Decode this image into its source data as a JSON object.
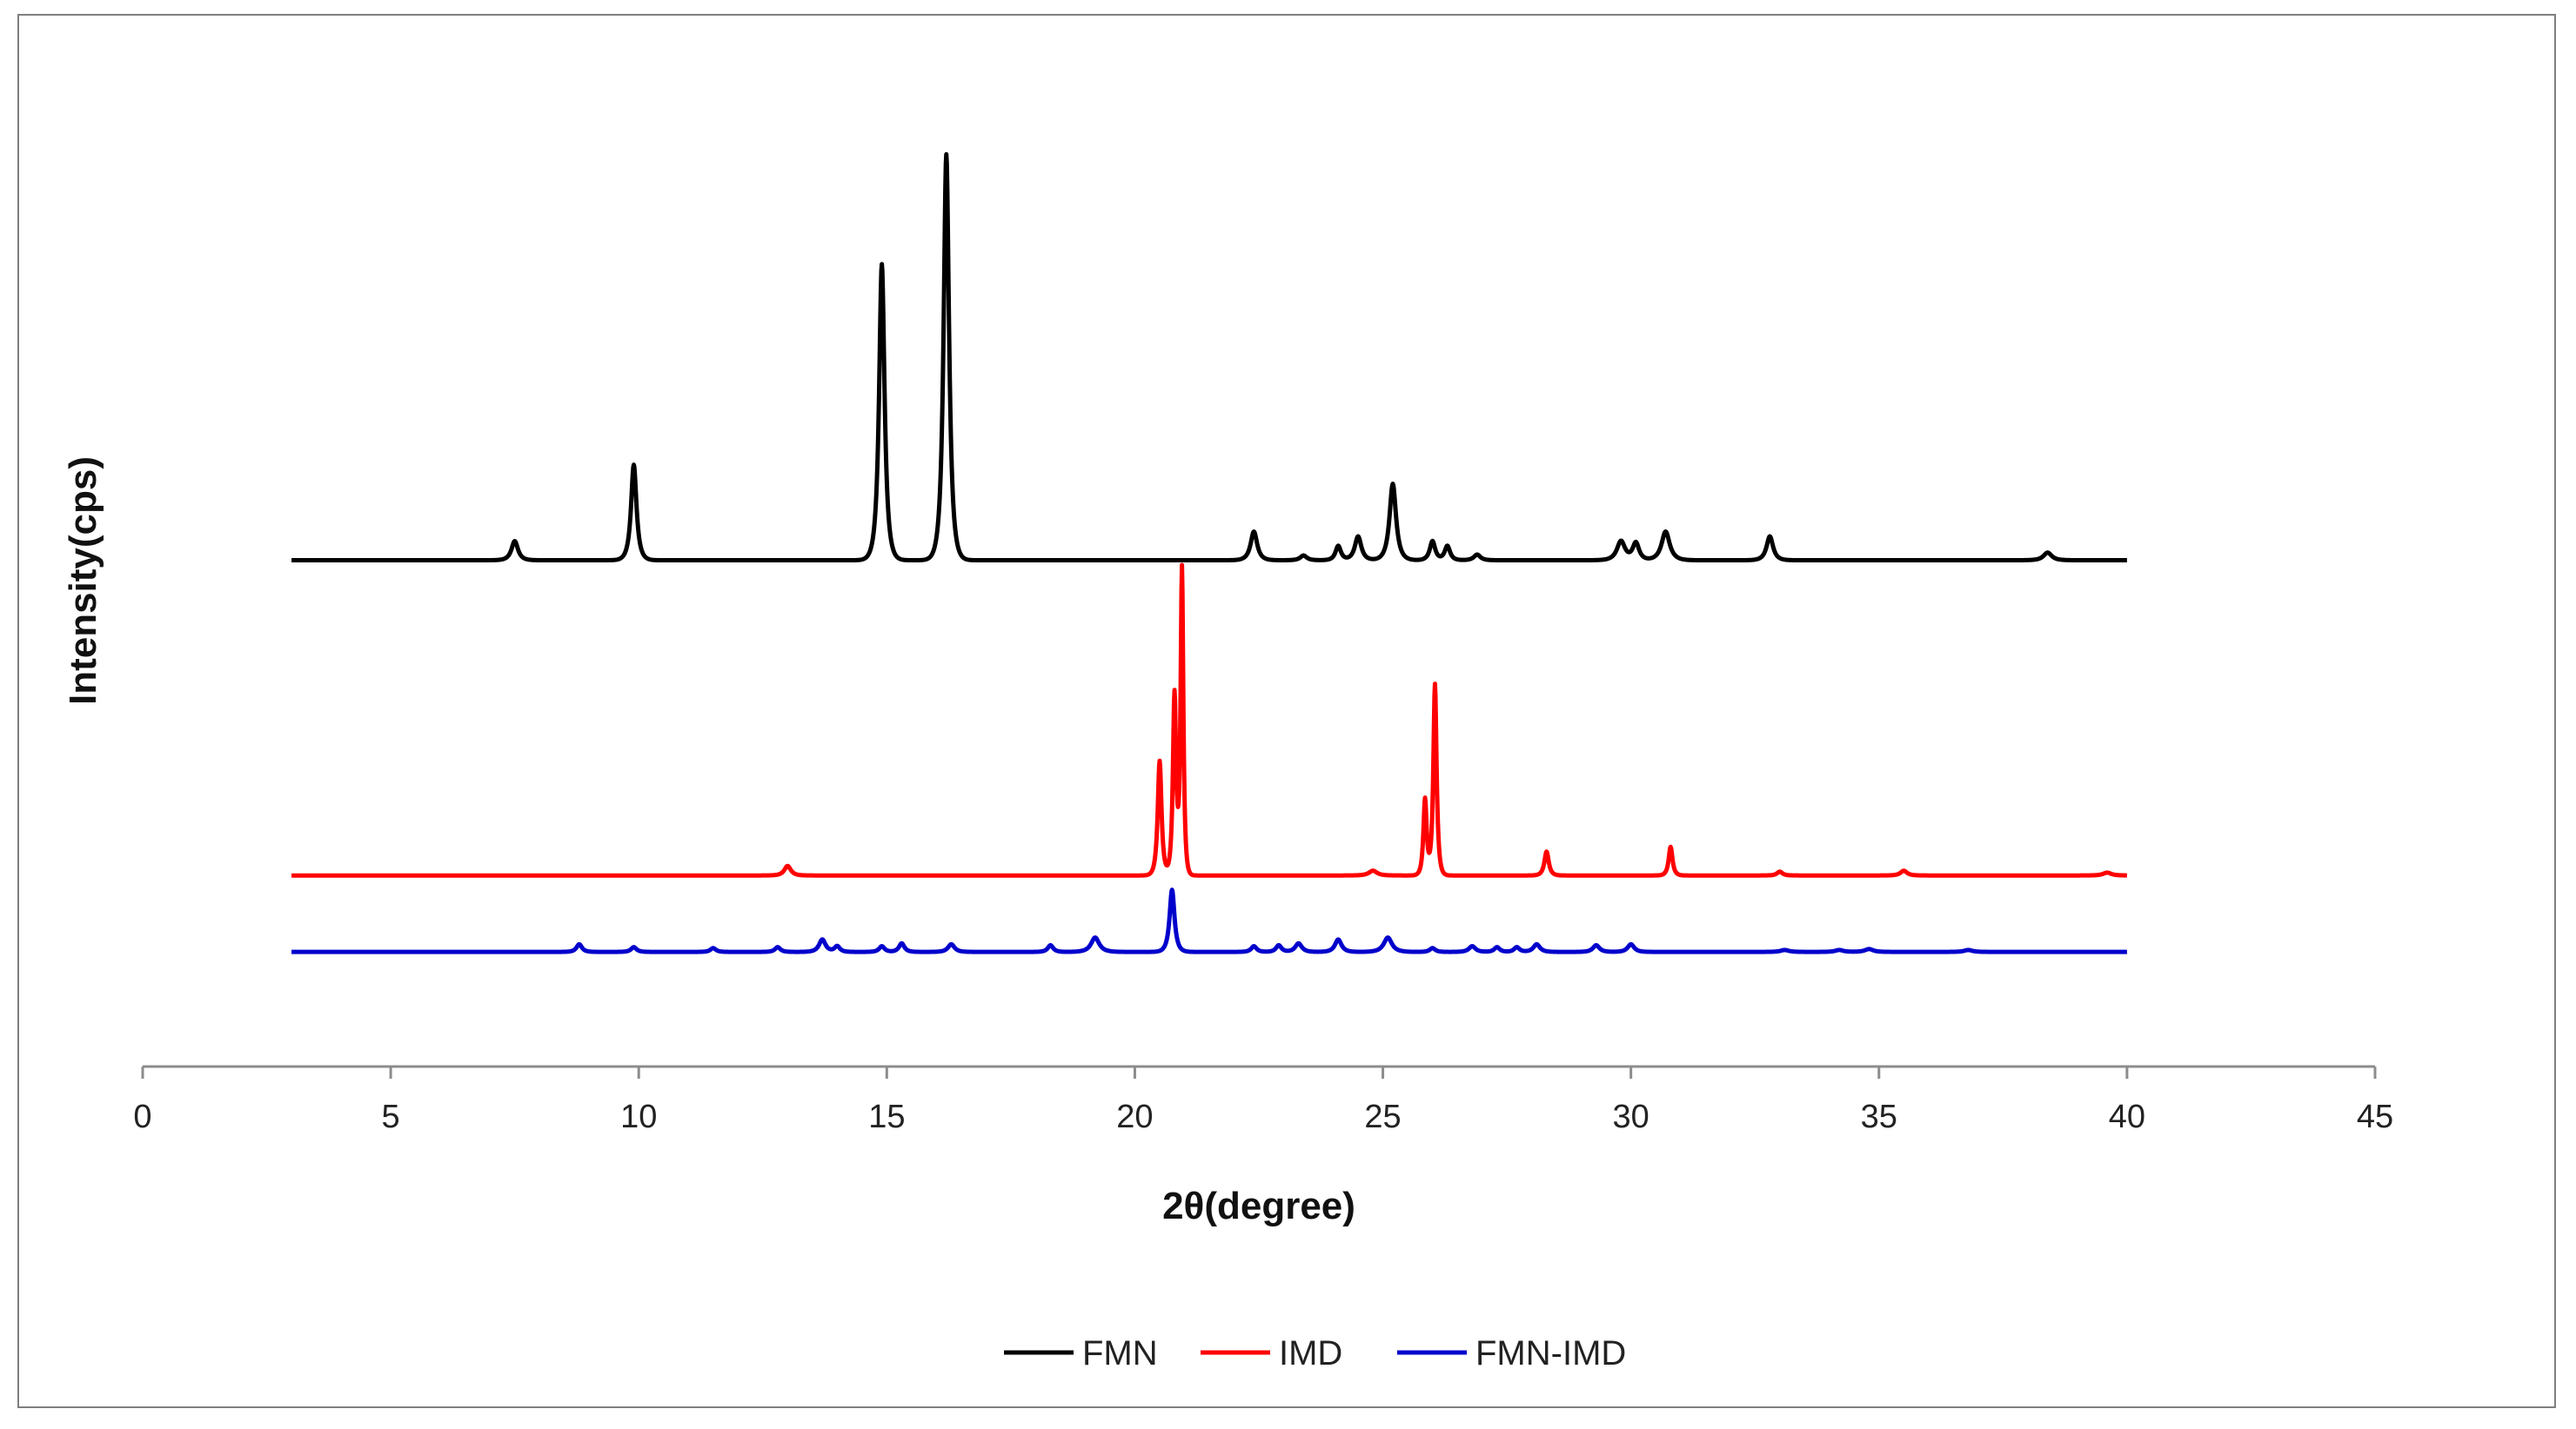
{
  "chart_data": {
    "type": "line",
    "title": "",
    "xlabel": "2θ(degree)",
    "ylabel": "Intensity(cps)",
    "xlim": [
      0,
      45
    ],
    "x_ticks": [
      0,
      5,
      10,
      15,
      20,
      25,
      30,
      35,
      40,
      45
    ],
    "x_tick_labels": [
      "0",
      "5",
      "10",
      "15",
      "20",
      "25",
      "30",
      "35",
      "40",
      "45"
    ],
    "y_ticks_shown": false,
    "grid": false,
    "legend_position": "bottom",
    "y_range": [
      0,
      100
    ],
    "series": [
      {
        "name": "FMN",
        "color": "#000000",
        "x_range": [
          3,
          40
        ],
        "baseline": 53,
        "peaks": [
          {
            "x": 7.5,
            "y": 55.0,
            "w": 0.12
          },
          {
            "x": 9.9,
            "y": 63.0,
            "w": 0.1
          },
          {
            "x": 14.9,
            "y": 84.0,
            "w": 0.1
          },
          {
            "x": 16.2,
            "y": 95.5,
            "w": 0.1
          },
          {
            "x": 22.4,
            "y": 56.0,
            "w": 0.12
          },
          {
            "x": 23.4,
            "y": 53.5,
            "w": 0.12
          },
          {
            "x": 24.1,
            "y": 54.5,
            "w": 0.1
          },
          {
            "x": 24.5,
            "y": 55.5,
            "w": 0.12
          },
          {
            "x": 25.2,
            "y": 61.0,
            "w": 0.12
          },
          {
            "x": 26.0,
            "y": 55.0,
            "w": 0.1
          },
          {
            "x": 26.3,
            "y": 54.5,
            "w": 0.1
          },
          {
            "x": 26.9,
            "y": 53.6,
            "w": 0.12
          },
          {
            "x": 29.8,
            "y": 55.0,
            "w": 0.15
          },
          {
            "x": 30.1,
            "y": 54.8,
            "w": 0.12
          },
          {
            "x": 30.7,
            "y": 56.0,
            "w": 0.15
          },
          {
            "x": 32.8,
            "y": 55.5,
            "w": 0.12
          },
          {
            "x": 38.4,
            "y": 53.8,
            "w": 0.15
          }
        ]
      },
      {
        "name": "IMD",
        "color": "#ff0000",
        "x_range": [
          3,
          40
        ],
        "baseline": 20,
        "peaks": [
          {
            "x": 13.0,
            "y": 21.0,
            "w": 0.12
          },
          {
            "x": 20.5,
            "y": 32.0,
            "w": 0.07
          },
          {
            "x": 20.8,
            "y": 39.0,
            "w": 0.06
          },
          {
            "x": 20.95,
            "y": 52.0,
            "w": 0.05
          },
          {
            "x": 24.8,
            "y": 20.5,
            "w": 0.15
          },
          {
            "x": 25.85,
            "y": 28.0,
            "w": 0.06
          },
          {
            "x": 26.05,
            "y": 40.0,
            "w": 0.06
          },
          {
            "x": 28.3,
            "y": 22.5,
            "w": 0.08
          },
          {
            "x": 30.8,
            "y": 23.0,
            "w": 0.07
          },
          {
            "x": 33.0,
            "y": 20.4,
            "w": 0.1
          },
          {
            "x": 35.5,
            "y": 20.5,
            "w": 0.12
          },
          {
            "x": 39.6,
            "y": 20.3,
            "w": 0.15
          }
        ]
      },
      {
        "name": "FMN-IMD",
        "color": "#0000cc",
        "x_range": [
          3,
          40
        ],
        "baseline": 12,
        "peaks": [
          {
            "x": 8.8,
            "y": 12.8,
            "w": 0.1
          },
          {
            "x": 9.9,
            "y": 12.5,
            "w": 0.1
          },
          {
            "x": 11.5,
            "y": 12.4,
            "w": 0.1
          },
          {
            "x": 12.8,
            "y": 12.5,
            "w": 0.1
          },
          {
            "x": 13.7,
            "y": 13.3,
            "w": 0.12
          },
          {
            "x": 14.0,
            "y": 12.6,
            "w": 0.1
          },
          {
            "x": 14.9,
            "y": 12.6,
            "w": 0.1
          },
          {
            "x": 15.3,
            "y": 12.9,
            "w": 0.1
          },
          {
            "x": 16.3,
            "y": 12.8,
            "w": 0.12
          },
          {
            "x": 18.3,
            "y": 12.7,
            "w": 0.1
          },
          {
            "x": 19.2,
            "y": 13.5,
            "w": 0.15
          },
          {
            "x": 20.75,
            "y": 18.5,
            "w": 0.09
          },
          {
            "x": 22.4,
            "y": 12.6,
            "w": 0.1
          },
          {
            "x": 22.9,
            "y": 12.7,
            "w": 0.1
          },
          {
            "x": 23.3,
            "y": 12.9,
            "w": 0.12
          },
          {
            "x": 24.1,
            "y": 13.3,
            "w": 0.12
          },
          {
            "x": 25.1,
            "y": 13.5,
            "w": 0.15
          },
          {
            "x": 26.0,
            "y": 12.4,
            "w": 0.1
          },
          {
            "x": 26.8,
            "y": 12.6,
            "w": 0.12
          },
          {
            "x": 27.3,
            "y": 12.5,
            "w": 0.1
          },
          {
            "x": 27.7,
            "y": 12.5,
            "w": 0.1
          },
          {
            "x": 28.1,
            "y": 12.8,
            "w": 0.12
          },
          {
            "x": 29.3,
            "y": 12.7,
            "w": 0.12
          },
          {
            "x": 30.0,
            "y": 12.8,
            "w": 0.12
          },
          {
            "x": 33.1,
            "y": 12.2,
            "w": 0.15
          },
          {
            "x": 34.2,
            "y": 12.2,
            "w": 0.15
          },
          {
            "x": 34.8,
            "y": 12.3,
            "w": 0.15
          },
          {
            "x": 36.8,
            "y": 12.2,
            "w": 0.15
          }
        ]
      }
    ]
  }
}
